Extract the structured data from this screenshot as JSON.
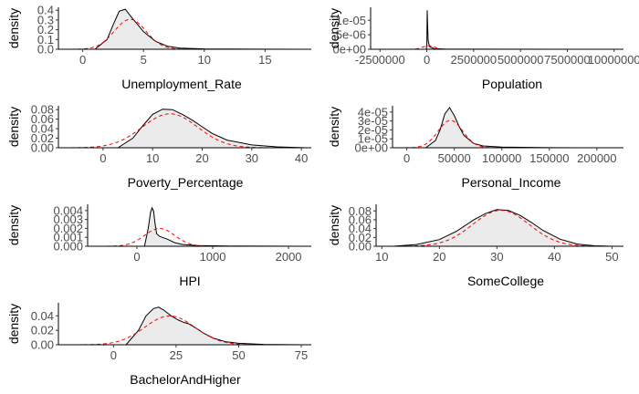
{
  "chart_data": [
    {
      "type": "area",
      "xlabel": "Unemployment_Rate",
      "ylabel": "density",
      "xlim": [
        -2,
        18.8
      ],
      "ylim": [
        0,
        0.43
      ],
      "xticks": [
        0,
        5,
        10,
        15
      ],
      "yticks": [
        0.0,
        0.1,
        0.2,
        0.3,
        0.4
      ],
      "ytick_labels": [
        "0.0",
        "0.1",
        "0.2",
        "0.3",
        "0.4"
      ],
      "kde": {
        "x": [
          1.0,
          2.0,
          2.5,
          3.0,
          3.5,
          4.0,
          5.0,
          6.0,
          7.0,
          8.0,
          10.0,
          14.0,
          18.5
        ],
        "y": [
          0.0,
          0.1,
          0.25,
          0.39,
          0.41,
          0.33,
          0.18,
          0.08,
          0.03,
          0.012,
          0.004,
          0.001,
          0.0
        ]
      },
      "normal": {
        "mean": 3.9,
        "sd": 1.3
      }
    },
    {
      "type": "area",
      "xlabel": "Population",
      "ylabel": "density",
      "xlim": [
        -3000000,
        10500000
      ],
      "ylim": [
        0,
        1.45e-05
      ],
      "xticks": [
        -2500000,
        0,
        2500000,
        5000000,
        7500000,
        10000000
      ],
      "xtick_labels": [
        "-2500000",
        "0",
        "2500000",
        "5000000",
        "7500000",
        "10000000"
      ],
      "yticks": [
        0,
        5e-06,
        1e-05
      ],
      "ytick_labels": [
        "0e+00",
        "5e-06",
        "1e-05"
      ],
      "kde": {
        "x": [
          -30000,
          0,
          20000,
          40000,
          70000,
          150000,
          400000,
          1000000,
          10100000
        ],
        "y": [
          0.0,
          2e-06,
          1.35e-05,
          9e-06,
          3e-06,
          9e-07,
          2e-07,
          3e-08,
          0.0
        ]
      },
      "normal": {
        "mean": 100000,
        "sd": 320000
      }
    },
    {
      "type": "area",
      "xlabel": "Poverty_Percentage",
      "ylabel": "density",
      "xlim": [
        -9,
        42
      ],
      "ylim": [
        0,
        0.088
      ],
      "xticks": [
        0,
        10,
        20,
        30,
        40
      ],
      "yticks": [
        0.0,
        0.02,
        0.04,
        0.06,
        0.08
      ],
      "ytick_labels": [
        "0.00",
        "0.02",
        "0.04",
        "0.06",
        "0.08"
      ],
      "kde": {
        "x": [
          3,
          6,
          8,
          10,
          12,
          14,
          16,
          18,
          20,
          22,
          25,
          30,
          35,
          41
        ],
        "y": [
          0.0,
          0.02,
          0.046,
          0.07,
          0.081,
          0.08,
          0.07,
          0.058,
          0.044,
          0.03,
          0.016,
          0.006,
          0.002,
          0.0
        ]
      },
      "normal": {
        "mean": 13.5,
        "sd": 5.6
      }
    },
    {
      "type": "area",
      "xlabel": "Personal_Income",
      "ylabel": "density",
      "xlim": [
        -15000,
        228000
      ],
      "ylim": [
        0,
        4.7e-05
      ],
      "xticks": [
        0,
        50000,
        100000,
        150000,
        200000
      ],
      "xtick_labels": [
        "0",
        "50000",
        "100000",
        "150000",
        "200000"
      ],
      "yticks": [
        0,
        1e-05,
        2e-05,
        3e-05,
        4e-05
      ],
      "ytick_labels": [
        "0e+00",
        "1e-05",
        "2e-05",
        "3e-05",
        "4e-05"
      ],
      "kde": {
        "x": [
          20000,
          30000,
          35000,
          40000,
          45000,
          50000,
          55000,
          60000,
          70000,
          80000,
          100000,
          150000,
          225000
        ],
        "y": [
          0.0,
          8e-06,
          2e-05,
          3.8e-05,
          4.5e-05,
          3.6e-05,
          2.4e-05,
          1.4e-05,
          5e-06,
          2e-06,
          7e-07,
          1e-07,
          0.0
        ]
      },
      "normal": {
        "mean": 46000,
        "sd": 13000
      }
    },
    {
      "type": "area",
      "xlabel": "HPI",
      "ylabel": "density",
      "xlim": [
        -650,
        2300
      ],
      "ylim": [
        0,
        0.0047
      ],
      "xticks": [
        0,
        1000,
        2000
      ],
      "yticks": [
        0.0,
        0.001,
        0.002,
        0.003,
        0.004
      ],
      "ytick_labels": [
        "0.000",
        "0.001",
        "0.002",
        "0.003",
        "0.004"
      ],
      "kde": {
        "x": [
          100,
          150,
          180,
          200,
          220,
          240,
          260,
          300,
          400,
          500,
          600,
          800,
          1200,
          2200
        ],
        "y": [
          0.0,
          0.002,
          0.0038,
          0.0043,
          0.0039,
          0.0025,
          0.0014,
          0.0011,
          0.0008,
          0.0004,
          0.0002,
          8e-05,
          2e-05,
          0.0
        ]
      },
      "normal": {
        "mean": 300,
        "sd": 200
      }
    },
    {
      "type": "area",
      "xlabel": "SomeCollege",
      "ylabel": "density",
      "xlim": [
        9,
        52
      ],
      "ylim": [
        0,
        0.095
      ],
      "xticks": [
        10,
        20,
        30,
        40,
        50
      ],
      "yticks": [
        0.0,
        0.02,
        0.04,
        0.06,
        0.08
      ],
      "ytick_labels": [
        "0.00",
        "0.02",
        "0.04",
        "0.06",
        "0.08"
      ],
      "kde": {
        "x": [
          12,
          16,
          20,
          23,
          26,
          28,
          30,
          32,
          34,
          36,
          38,
          41,
          44,
          47,
          50
        ],
        "y": [
          0.0,
          0.004,
          0.015,
          0.034,
          0.06,
          0.074,
          0.083,
          0.081,
          0.07,
          0.054,
          0.036,
          0.016,
          0.005,
          0.001,
          0.0
        ]
      },
      "normal": {
        "mean": 30.7,
        "sd": 4.9
      }
    },
    {
      "type": "area",
      "xlabel": "BachelorAndHigher",
      "ylabel": "density",
      "xlim": [
        -22,
        79
      ],
      "ylim": [
        0,
        0.058
      ],
      "xticks": [
        0,
        25,
        50,
        75
      ],
      "yticks": [
        0.0,
        0.02,
        0.04
      ],
      "ytick_labels": [
        "0.00",
        "0.02",
        "0.04"
      ],
      "kde": {
        "x": [
          5,
          10,
          13,
          16,
          18,
          20,
          23,
          26,
          28,
          30,
          33,
          36,
          40,
          45,
          50,
          60,
          75
        ],
        "y": [
          0.0,
          0.02,
          0.04,
          0.05,
          0.052,
          0.048,
          0.04,
          0.034,
          0.031,
          0.029,
          0.023,
          0.016,
          0.009,
          0.004,
          0.002,
          0.0005,
          0.0
        ]
      },
      "normal": {
        "mean": 22.5,
        "sd": 10
      }
    }
  ],
  "colors": {
    "fill": "#ebebeb",
    "kde_line": "#000000",
    "normal_line": "#ff0000",
    "tick_text": "#4d4d4d",
    "axis_title": "#000000"
  }
}
